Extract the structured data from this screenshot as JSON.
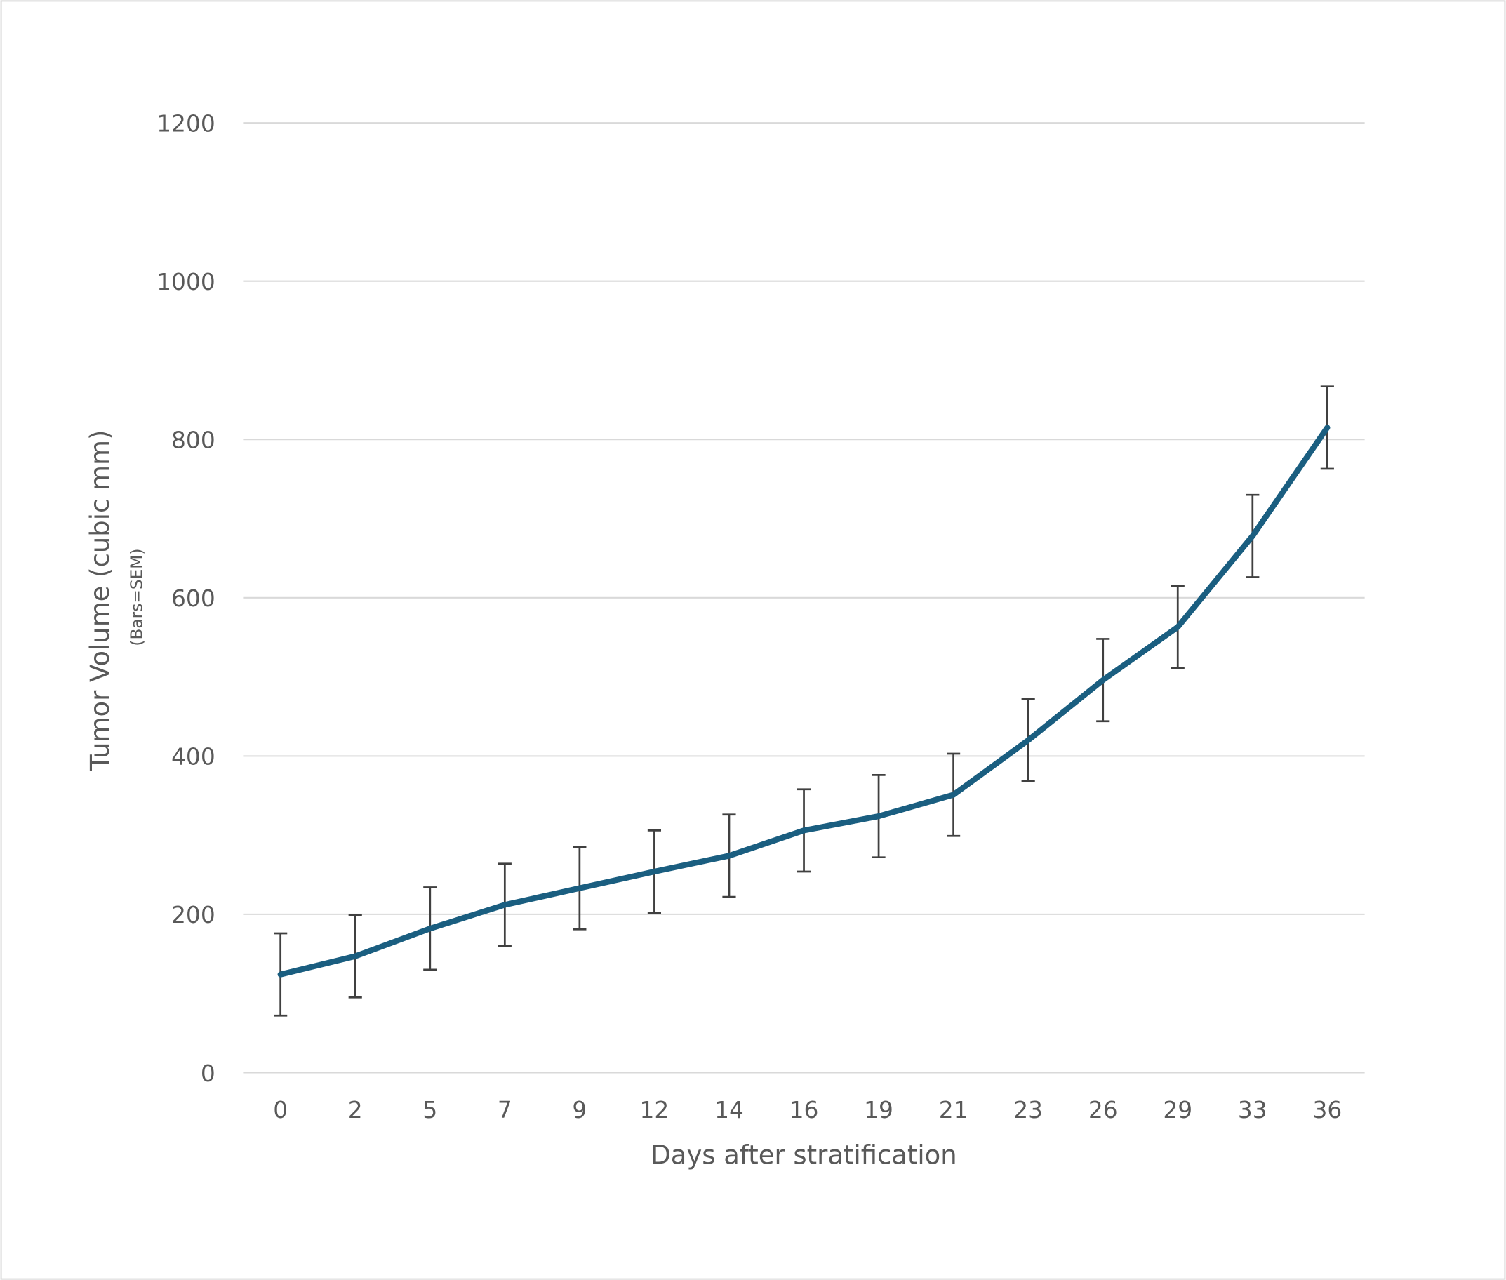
{
  "chart_data": {
    "type": "line",
    "title": "",
    "xlabel": "Days after stratification",
    "ylabel": "Tumor Volume (cubic mm)",
    "ylabel_sub": "(Bars=SEM)",
    "categories": [
      "0",
      "2",
      "5",
      "7",
      "9",
      "12",
      "14",
      "16",
      "19",
      "21",
      "23",
      "26",
      "29",
      "33",
      "36"
    ],
    "series": [
      {
        "values": [
          124,
          147,
          182,
          212,
          233,
          254,
          274,
          306,
          324,
          351,
          420,
          496,
          563,
          678,
          815
        ],
        "error": [
          52,
          52,
          52,
          52,
          52,
          52,
          52,
          52,
          52,
          52,
          52,
          52,
          52,
          52,
          52
        ],
        "color": "#1a5e80"
      }
    ],
    "ylim": [
      0,
      1200
    ],
    "yticks": [
      0,
      200,
      400,
      600,
      800,
      1000,
      1200
    ],
    "grid": "horizontal",
    "legend": "none",
    "colors": {
      "grid": "#d9d9d9",
      "text": "#595959",
      "errorbar": "#404040",
      "border": "#d9d9d9"
    }
  }
}
